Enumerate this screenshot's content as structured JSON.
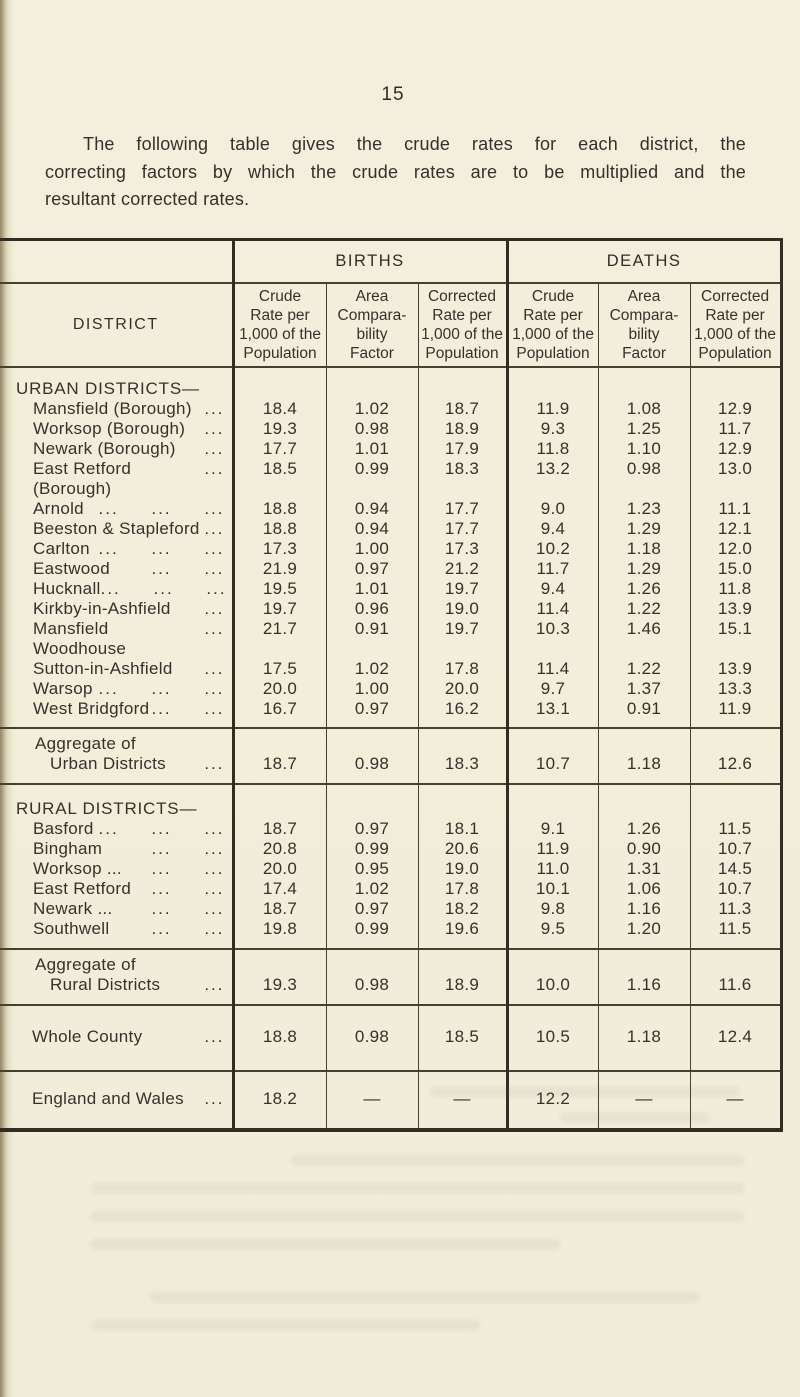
{
  "page": {
    "number": "15",
    "intro_lines": [
      "The following table gives the crude rates for each district, the",
      "correcting factors by which the crude rates are to be multiplied and the",
      "resultant corrected rates."
    ]
  },
  "table": {
    "group_headers": [
      "BIRTHS",
      "DEATHS"
    ],
    "columns": {
      "district": "DISTRICT",
      "crude": "Crude\nRate per\n1,000 of the\nPopulation",
      "acf": "Area\nCompara-\nbility\nFactor",
      "corrected": "Corrected\nRate per\n1,000 of the\nPopulation"
    },
    "body": [
      {
        "kind": "urban",
        "sep": false,
        "rows": [
          {
            "type": "heading",
            "label": "URBAN DISTRICTS—"
          },
          {
            "type": "data",
            "label": "Mansfield (Borough)",
            "leader": "...",
            "values": [
              "18.4",
              "1.02",
              "18.7",
              "11.9",
              "1.08",
              "12.9"
            ]
          },
          {
            "type": "data",
            "label": "Worksop (Borough)",
            "leader": "...",
            "values": [
              "19.3",
              "0.98",
              "18.9",
              "9.3",
              "1.25",
              "11.7"
            ]
          },
          {
            "type": "data",
            "label": "Newark (Borough)",
            "leader": "...",
            "values": [
              "17.7",
              "1.01",
              "17.9",
              "11.8",
              "1.10",
              "12.9"
            ]
          },
          {
            "type": "data",
            "label": "East Retford (Borough)",
            "leader": "...",
            "values": [
              "18.5",
              "0.99",
              "18.3",
              "13.2",
              "0.98",
              "13.0"
            ]
          },
          {
            "type": "data",
            "label": "Arnold",
            "leader": "... ... ...",
            "values": [
              "18.8",
              "0.94",
              "17.7",
              "9.0",
              "1.23",
              "11.1"
            ]
          },
          {
            "type": "data",
            "label": "Beeston & Stapleford",
            "leader": "...",
            "values": [
              "18.8",
              "0.94",
              "17.7",
              "9.4",
              "1.29",
              "12.1"
            ]
          },
          {
            "type": "data",
            "label": "Carlton",
            "leader": "... ... ...",
            "values": [
              "17.3",
              "1.00",
              "17.3",
              "10.2",
              "1.18",
              "12.0"
            ]
          },
          {
            "type": "data",
            "label": "Eastwood",
            "leader": "... ...",
            "values": [
              "21.9",
              "0.97",
              "21.2",
              "11.7",
              "1.29",
              "15.0"
            ]
          },
          {
            "type": "data",
            "label": "Hucknall",
            "leader": "... ... ...",
            "values": [
              "19.5",
              "1.01",
              "19.7",
              "9.4",
              "1.26",
              "11.8"
            ]
          },
          {
            "type": "data",
            "label": "Kirkby-in-Ashfield",
            "leader": "...",
            "values": [
              "19.7",
              "0.96",
              "19.0",
              "11.4",
              "1.22",
              "13.9"
            ]
          },
          {
            "type": "data",
            "label": "Mansfield Woodhouse",
            "leader": "...",
            "values": [
              "21.7",
              "0.91",
              "19.7",
              "10.3",
              "1.46",
              "15.1"
            ]
          },
          {
            "type": "data",
            "label": "Sutton-in-Ashfield",
            "leader": "...",
            "values": [
              "17.5",
              "1.02",
              "17.8",
              "11.4",
              "1.22",
              "13.9"
            ]
          },
          {
            "type": "data",
            "label": "Warsop",
            "leader": "... ... ...",
            "values": [
              "20.0",
              "1.00",
              "20.0",
              "9.7",
              "1.37",
              "13.3"
            ]
          },
          {
            "type": "data",
            "label": "West Bridgford",
            "leader": "... ...",
            "values": [
              "16.7",
              "0.97",
              "16.2",
              "13.1",
              "0.91",
              "11.9"
            ]
          }
        ]
      },
      {
        "kind": "agg",
        "sep": true,
        "rows": [
          {
            "type": "aggregate",
            "label_line1": "Aggregate of",
            "label_line2": "Urban Districts",
            "leader": "...",
            "values": [
              "18.7",
              "0.98",
              "18.3",
              "10.7",
              "1.18",
              "12.6"
            ]
          }
        ]
      },
      {
        "kind": "rural",
        "sep": true,
        "rows": [
          {
            "type": "heading",
            "label": "RURAL DISTRICTS—"
          },
          {
            "type": "data",
            "label": "Basford",
            "leader": "... ... ...",
            "values": [
              "18.7",
              "0.97",
              "18.1",
              "9.1",
              "1.26",
              "11.5"
            ]
          },
          {
            "type": "data",
            "label": "Bingham",
            "leader": "... ...",
            "values": [
              "20.8",
              "0.99",
              "20.6",
              "11.9",
              "0.90",
              "10.7"
            ]
          },
          {
            "type": "data",
            "label": "Worksop ...",
            "leader": "... ...",
            "values": [
              "20.0",
              "0.95",
              "19.0",
              "11.0",
              "1.31",
              "14.5"
            ]
          },
          {
            "type": "data",
            "label": "East Retford",
            "leader": "... ...",
            "values": [
              "17.4",
              "1.02",
              "17.8",
              "10.1",
              "1.06",
              "10.7"
            ]
          },
          {
            "type": "data",
            "label": "Newark ...",
            "leader": "... ...",
            "values": [
              "18.7",
              "0.97",
              "18.2",
              "9.8",
              "1.16",
              "11.3"
            ]
          },
          {
            "type": "data",
            "label": "Southwell",
            "leader": "... ...",
            "values": [
              "19.8",
              "0.99",
              "19.6",
              "9.5",
              "1.20",
              "11.5"
            ]
          }
        ]
      },
      {
        "kind": "agg",
        "sep": true,
        "rows": [
          {
            "type": "aggregate",
            "label_line1": "Aggregate of",
            "label_line2": "Rural Districts",
            "leader": "...",
            "values": [
              "19.3",
              "0.98",
              "18.9",
              "10.0",
              "1.16",
              "11.6"
            ]
          }
        ]
      },
      {
        "kind": "county",
        "sep": true,
        "rows": [
          {
            "type": "total",
            "label": "Whole County",
            "leader": "...",
            "values": [
              "18.8",
              "0.98",
              "18.5",
              "10.5",
              "1.18",
              "12.4"
            ]
          }
        ]
      },
      {
        "kind": "ew",
        "sep": true,
        "rows": [
          {
            "type": "total",
            "label": "England and Wales",
            "leader": "...",
            "values": [
              "18.2",
              "—",
              "—",
              "12.2",
              "—",
              "—"
            ]
          }
        ]
      }
    ]
  }
}
